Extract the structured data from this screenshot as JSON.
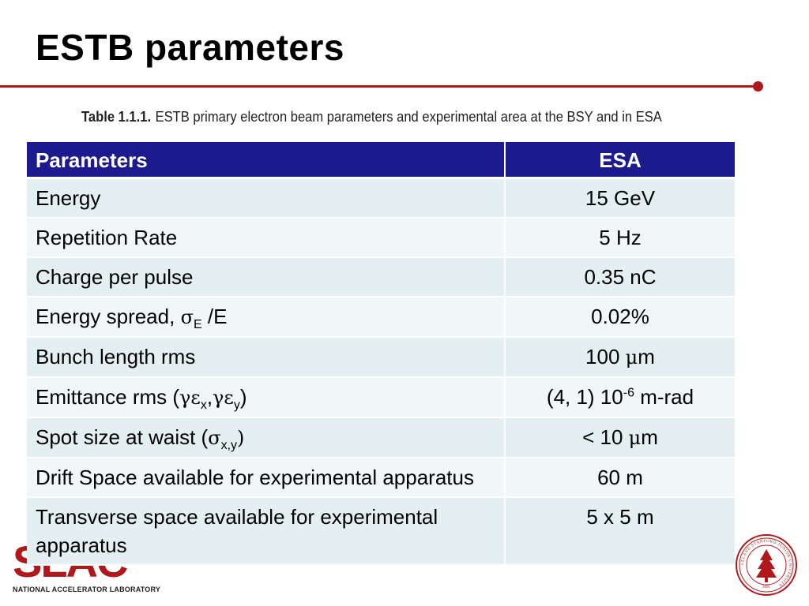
{
  "slide": {
    "title": "ESTB parameters",
    "caption": {
      "label": "Table 1.1.1.",
      "text": "ESTB  primary electron beam parameters and experimental area at the BSY and in ESA"
    }
  },
  "table": {
    "headers": [
      "Parameters",
      "ESA"
    ],
    "rows": [
      {
        "param": "Energy",
        "value": "15 GeV"
      },
      {
        "param": "Repetition Rate",
        "value": "5 Hz"
      },
      {
        "param": "Charge per pulse",
        "value": "0.35 nC"
      },
      {
        "param_prefix": "Energy spread, ",
        "param_sym": "σ",
        "param_sub": "E",
        "param_suffix": " /E",
        "value": "0.02%"
      },
      {
        "param": "Bunch length rms",
        "value_num": "100 ",
        "value_sym": "μ",
        "value_unit": "m"
      },
      {
        "param_prefix": "Emittance rms (",
        "param_sym1": "γε",
        "param_sub1": "x",
        "param_comma": ",",
        "param_sym2": "γε",
        "param_sub2": "y",
        "param_suffix": ")",
        "value_prefix": "(4, 1) 10",
        "value_sup": "-6",
        "value_suffix": " m-rad"
      },
      {
        "param_prefix": "Spot size at waist (",
        "param_sym": "σ",
        "param_sub": "x,y",
        "param_suffix": ")",
        "value_num": "< 10 ",
        "value_sym": "μ",
        "value_unit": "m"
      },
      {
        "param": "Drift Space available for experimental apparatus",
        "value": "60 m"
      },
      {
        "param": "Transverse space available for experimental apparatus",
        "value": "5 x 5 m"
      }
    ]
  },
  "logo": {
    "letters": "SLAC",
    "subtitle": "NATIONAL ACCELERATOR LABORATORY"
  },
  "seal": {
    "ring_text": "LELAND STANFORD JUNIOR UNIVERSITY",
    "year": "1891"
  },
  "colors": {
    "accent": "#b0191c",
    "table_header": "#1c1a8c",
    "row_odd": "#e4eff1",
    "row_even": "#f1f7f8"
  }
}
